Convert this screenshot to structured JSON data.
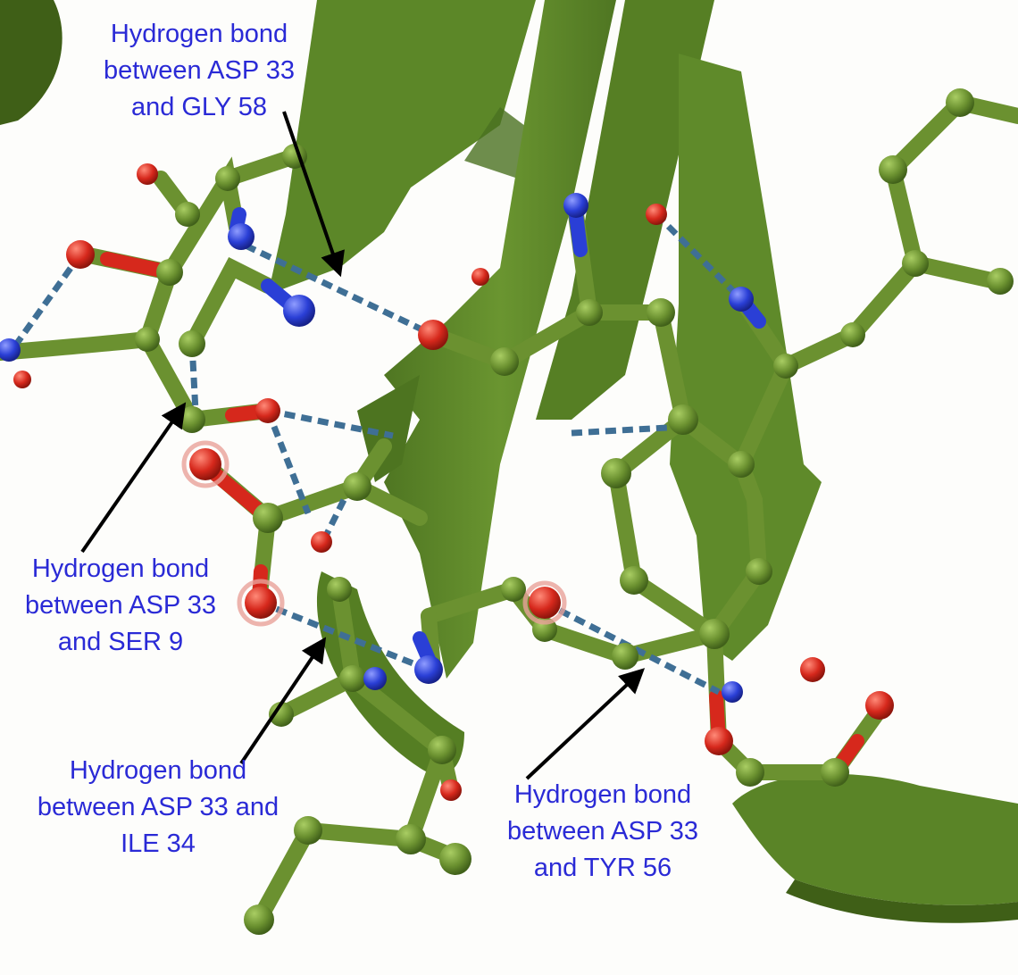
{
  "annotations": [
    {
      "id": "gly58",
      "lines": [
        "Hydrogen bond",
        "between ASP 33",
        "and GLY 58"
      ]
    },
    {
      "id": "ser9",
      "lines": [
        "Hydrogen bond",
        "between ASP 33",
        "and SER 9"
      ]
    },
    {
      "id": "ile34",
      "lines": [
        "Hydrogen bond",
        "between ASP 33 and",
        "ILE 34"
      ]
    },
    {
      "id": "tyr56",
      "lines": [
        "Hydrogen bond",
        "between ASP 33",
        "and TYR 56"
      ]
    }
  ],
  "colors": {
    "ribbon": "#5f8a2a",
    "ribbon_dark": "#466c1b",
    "carbon": "#6b9130",
    "oxygen": "#d6281c",
    "nitrogen": "#2a3fd6",
    "hbond": "#3f6f95",
    "label_text": "#2a2ad6",
    "arrow": "#000000"
  }
}
